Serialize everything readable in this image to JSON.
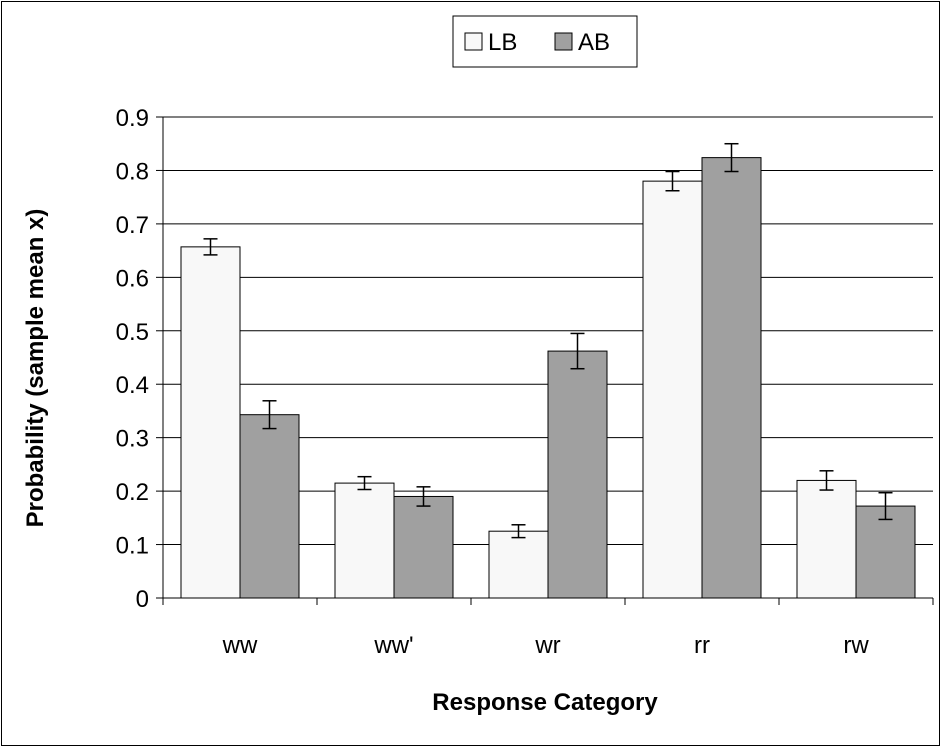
{
  "chart_data": {
    "type": "bar",
    "title": "",
    "xlabel": "Response Category",
    "ylabel": "Probability (sample mean x)",
    "categories": [
      "ww",
      "ww'",
      "wr",
      "rr",
      "rw"
    ],
    "series": [
      {
        "name": "LB",
        "values": [
          0.657,
          0.215,
          0.125,
          0.78,
          0.22
        ],
        "errors": [
          0.015,
          0.012,
          0.012,
          0.018,
          0.018
        ],
        "color": "#f8f8f8"
      },
      {
        "name": "AB",
        "values": [
          0.343,
          0.19,
          0.462,
          0.824,
          0.172
        ],
        "errors": [
          0.026,
          0.018,
          0.033,
          0.026,
          0.025
        ],
        "color": "#a0a0a0"
      }
    ],
    "ylim": [
      0,
      0.9
    ],
    "yticks": [
      "0",
      "0.1",
      "0.2",
      "0.3",
      "0.4",
      "0.5",
      "0.6",
      "0.7",
      "0.8",
      "0.9"
    ],
    "grid": true,
    "legend_position": "top-center"
  }
}
